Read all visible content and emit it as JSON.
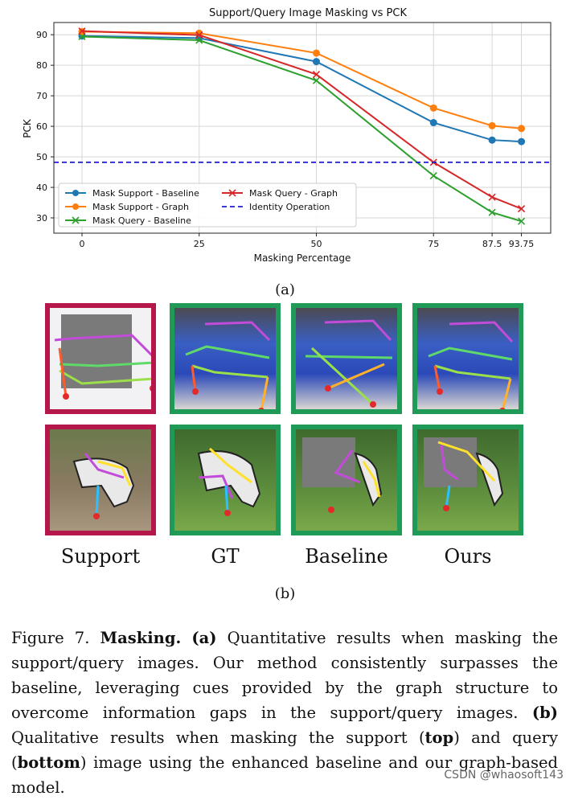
{
  "chart_data": {
    "type": "line",
    "title": "Support/Query Image Masking vs PCK",
    "xlabel": "Masking Percentage",
    "ylabel": "PCK",
    "x": [
      0,
      25,
      50,
      75,
      87.5,
      93.75
    ],
    "x_tick_labels": [
      "0",
      "25",
      "50",
      "75",
      "87.5",
      "93.75"
    ],
    "y_ticks": [
      30,
      40,
      50,
      60,
      70,
      80,
      90
    ],
    "ylim": [
      25,
      94
    ],
    "grid": true,
    "legend_position": "lower-left",
    "series": [
      {
        "name": "Mask Support - Baseline",
        "color": "#1f77b4",
        "marker": "circle",
        "values": [
          89.6,
          88.9,
          81.2,
          61.2,
          55.5,
          55.0
        ]
      },
      {
        "name": "Mask Support - Graph",
        "color": "#ff7f0e",
        "marker": "circle",
        "values": [
          91.0,
          90.5,
          84.0,
          66.0,
          60.2,
          59.3
        ]
      },
      {
        "name": "Mask Query - Baseline",
        "color": "#2ca02c",
        "marker": "x",
        "values": [
          89.4,
          88.2,
          75.0,
          43.8,
          31.8,
          28.9
        ]
      },
      {
        "name": "Mask Query - Graph",
        "color": "#d62728",
        "marker": "x",
        "values": [
          91.2,
          89.9,
          77.0,
          48.2,
          36.8,
          33.0
        ]
      },
      {
        "name": "Identity Operation",
        "color": "#1f1fcf",
        "style": "dashed",
        "constant": 48.2
      }
    ]
  },
  "labels": {
    "sub_a": "(a)",
    "sub_b": "(b)",
    "col_support": "Support",
    "col_gt": "GT",
    "col_baseline": "Baseline",
    "col_ours": "Ours"
  },
  "caption": {
    "prefix": "Figure 7. ",
    "bold_title": "Masking.",
    "part_a_label": "(a)",
    "part_a_text": " Quantitative results when masking the support/query images. Our method consistently surpasses the baseline, leveraging cues provided by the graph structure to overcome information gaps in the support/query images. ",
    "part_b_label": "(b)",
    "part_b_text1": " Qualitative results when masking the support (",
    "top": "top",
    "part_b_text2": ") and query (",
    "bottom": "bottom",
    "part_b_text3": ") image using the enhanced baseline and our graph-based model."
  },
  "watermark": "CSDN @whaosoft143",
  "colors": {
    "support_border": "#b5174a",
    "result_border": "#1f9a57"
  }
}
